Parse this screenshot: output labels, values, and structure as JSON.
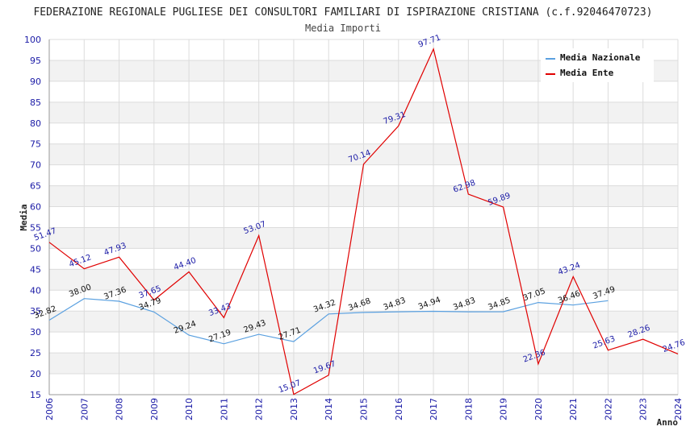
{
  "chart_data": {
    "type": "line",
    "title": "FEDERAZIONE REGIONALE PUGLIESE DEI CONSULTORI FAMILIARI DI ISPIRAZIONE CRISTIANA (c.f.92046470723)",
    "subtitle": "Media Importi",
    "xlabel": "Anno",
    "ylabel": "Media",
    "ylim": [
      15,
      100
    ],
    "yticks": [
      15,
      20,
      25,
      30,
      35,
      40,
      45,
      50,
      55,
      60,
      65,
      70,
      75,
      80,
      85,
      90,
      95,
      100
    ],
    "categories": [
      "2006",
      "2007",
      "2008",
      "2009",
      "2010",
      "2011",
      "2012",
      "2013",
      "2014",
      "2015",
      "2016",
      "2017",
      "2018",
      "2019",
      "2020",
      "2021",
      "2022",
      "2023",
      "2024"
    ],
    "grid": true,
    "legend_position": "top-right",
    "series": [
      {
        "name": "Media Nazionale",
        "color": "#5aa0e0",
        "values": [
          32.82,
          38.0,
          37.36,
          34.79,
          29.24,
          27.19,
          29.43,
          27.71,
          34.32,
          34.68,
          34.83,
          34.94,
          34.83,
          34.85,
          37.05,
          36.46,
          37.49,
          null,
          null
        ],
        "labels": [
          "32.82",
          "38.00",
          "37.36",
          "34.79",
          "29.24",
          "27.19",
          "29.43",
          "27.71",
          "34.32",
          "34.68",
          "34.83",
          "34.94",
          "34.83",
          "34.85",
          "37.05",
          "36.46",
          "37.49",
          "",
          ""
        ]
      },
      {
        "name": "Media Ente",
        "color": "#e00000",
        "values": [
          51.47,
          45.12,
          47.93,
          37.65,
          44.4,
          33.43,
          53.07,
          15.07,
          19.67,
          70.14,
          79.31,
          97.71,
          62.98,
          59.89,
          22.36,
          43.24,
          25.63,
          28.26,
          24.76
        ],
        "labels": [
          "51.47",
          "45.12",
          "47.93",
          "37.65",
          "44.40",
          "33.43",
          "53.07",
          "15.07",
          "19.67",
          "70.14",
          "79.31",
          "97.71",
          "62.98",
          "59.89",
          "22.36",
          "43.24",
          "25.63",
          "28.26",
          "24.76"
        ]
      }
    ]
  }
}
